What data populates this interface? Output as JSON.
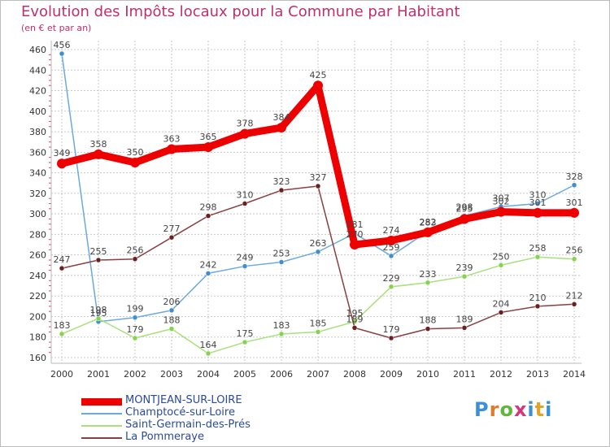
{
  "title": "Evolution des Impôts locaux pour la Commune par Habitant",
  "subtitle": "(en € et par an)",
  "logo": {
    "text": "Proxiti",
    "colors": [
      "#3b8fd6",
      "#e07b2a",
      "#5fb83a",
      "#d8347a",
      "#3b8fd6",
      "#e0a42a",
      "#3b8fd6"
    ]
  },
  "colors": {
    "grid": "#c8c8c8",
    "axis": "#bbbbbb",
    "tick_text": "#333333",
    "label_text": "#444444"
  },
  "chart_data": {
    "type": "line",
    "title": "Evolution des Impôts locaux pour la Commune par Habitant",
    "ylabel": "(en € et par an)",
    "x": [
      "2000",
      "2001",
      "2002",
      "2003",
      "2004",
      "2005",
      "2006",
      "2007",
      "2008",
      "2009",
      "2010",
      "2011",
      "2012",
      "2013",
      "2014"
    ],
    "y_ticks": [
      "160",
      "180",
      "200",
      "220",
      "240",
      "260",
      "280",
      "300",
      "320",
      "340",
      "360",
      "380",
      "400",
      "420",
      "440",
      "460"
    ],
    "ylim": [
      160,
      460
    ],
    "series": [
      {
        "name": "MONTJEAN-SUR-LOIRE",
        "color": "#ee0000",
        "marker": "#ee0000",
        "width": 9,
        "dot": 6,
        "values": [
          349,
          358,
          350,
          363,
          365,
          378,
          384,
          425,
          270,
          274,
          282,
          295,
          302,
          301,
          301
        ]
      },
      {
        "name": "Champtocé-sur-Loire",
        "color": "#6aaadf",
        "marker": "#3f8fd0",
        "width": 1.5,
        "dot": 3,
        "values": [
          456,
          195,
          199,
          206,
          242,
          249,
          253,
          263,
          281,
          259,
          283,
          298,
          307,
          310,
          328
        ]
      },
      {
        "name": "Saint-Germain-des-Prés",
        "color": "#a8e07a",
        "marker": "#86d34d",
        "width": 1.5,
        "dot": 3,
        "values": [
          183,
          198,
          179,
          188,
          164,
          175,
          183,
          185,
          195,
          229,
          233,
          239,
          250,
          258,
          256
        ]
      },
      {
        "name": "La Pommeraye",
        "color": "#8a4040",
        "marker": "#6a2020",
        "width": 1.5,
        "dot": 3,
        "values": [
          247,
          255,
          256,
          277,
          298,
          310,
          323,
          327,
          189,
          179,
          188,
          189,
          204,
          210,
          212
        ]
      }
    ]
  }
}
